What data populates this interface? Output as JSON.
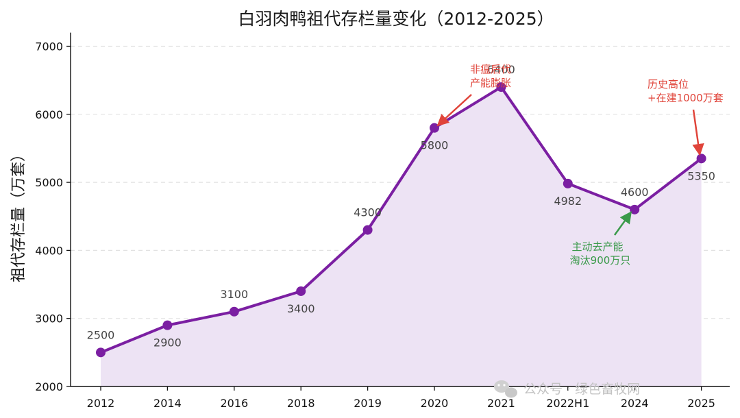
{
  "chart_data": {
    "type": "line",
    "title": "白羽肉鸭祖代存栏量变化（2012-2025）",
    "xlabel": "",
    "ylabel": "祖代存栏量（万套）",
    "categories": [
      "2012",
      "2014",
      "2016",
      "2018",
      "2019",
      "2020",
      "2021",
      "2022H1",
      "2024",
      "2025"
    ],
    "series": [
      {
        "values": [
          2500,
          2900,
          3100,
          3400,
          4300,
          5800,
          6400,
          4982,
          4600,
          5350
        ]
      }
    ],
    "data_labels": [
      "2500",
      "2900",
      "3100",
      "3400",
      "4300",
      "5800",
      "6400",
      "4982",
      "4600",
      "5350"
    ],
    "ylim": [
      2000,
      7200
    ],
    "yticks": [
      2000,
      3000,
      4000,
      5000,
      6000,
      7000
    ],
    "grid": "horizontal dashed",
    "line_color": "#7b1fa2",
    "fill_color": "#ede3f4",
    "annotations": [
      {
        "point": "2021",
        "lines": [
          "非瘟后代",
          "产能膨胀"
        ],
        "color": "#e0443a"
      },
      {
        "point": "2025",
        "lines": [
          "历史高位",
          "+在建1000万套"
        ],
        "color": "#e0443a"
      },
      {
        "point": "2024",
        "lines": [
          "主动去产能",
          "淘汰900万只"
        ],
        "color": "#3a9a4a"
      }
    ]
  },
  "watermark": {
    "text": "公众号 · 绿色畜牧网",
    "icon": "wechat-icon"
  }
}
